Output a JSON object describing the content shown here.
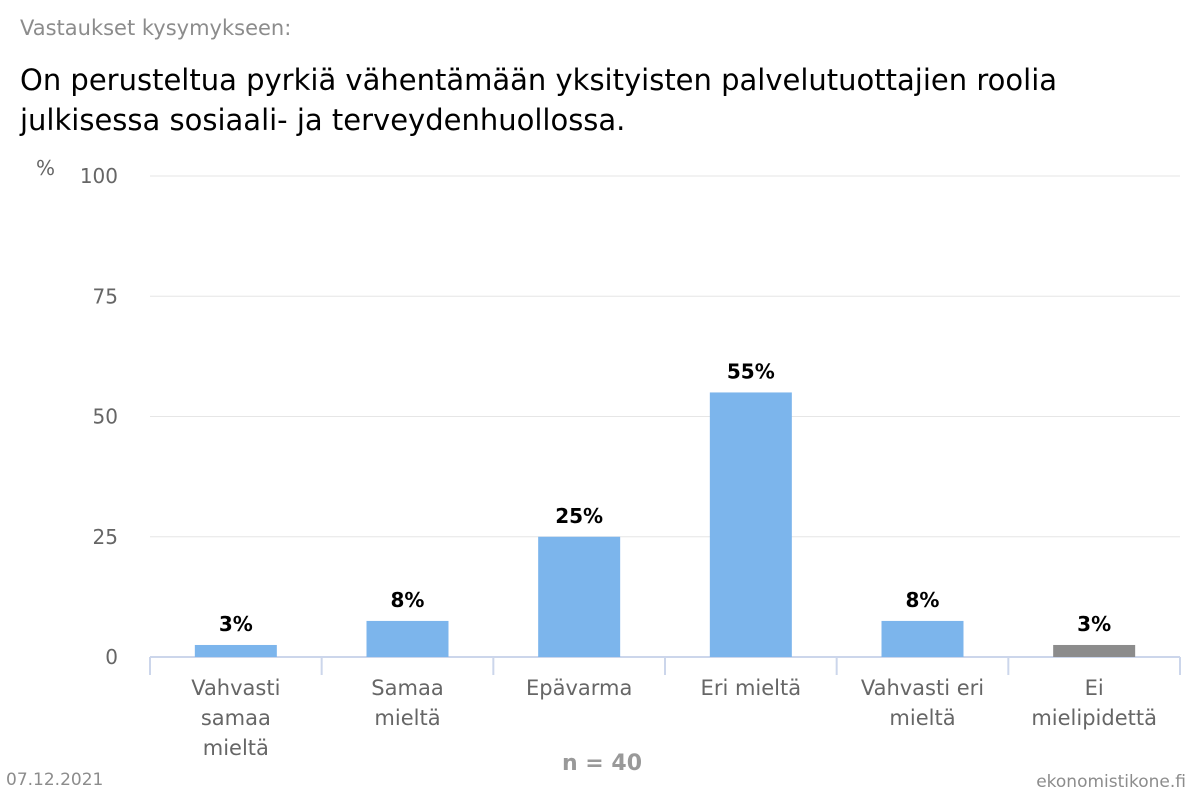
{
  "header": {
    "subtitle": "Vastaukset kysymykseen:",
    "title": "On perusteltua pyrkiä vähentämään yksityisten palvelutuottajien roolia julkisessa sosiaali- ja terveydenhuollossa."
  },
  "footer": {
    "date": "07.12.2021",
    "source": "ekonomistikone.fi",
    "n_label": "n = 40"
  },
  "colors": {
    "bar": "#7cb5ec",
    "bar_no_opinion": "#8c8c8c",
    "grid": "#e6e6e6",
    "axis": "#ccd6eb",
    "tick_text": "#666666",
    "data_label": "#000000"
  },
  "chart_data": {
    "type": "bar",
    "title": "On perusteltua pyrkiä vähentämään yksityisten palvelutuottajien roolia julkisessa sosiaali- ja terveydenhuollossa.",
    "ylabel": "%",
    "ylim": [
      0,
      100
    ],
    "yticks": [
      0,
      25,
      50,
      75,
      100
    ],
    "grid": true,
    "categories": [
      [
        "Vahvasti",
        "samaa",
        "mieltä"
      ],
      [
        "Samaa",
        "mieltä"
      ],
      [
        "Epävarma"
      ],
      [
        "Eri mieltä"
      ],
      [
        "Vahvasti eri",
        "mieltä"
      ],
      [
        "Ei",
        "mielipidettä"
      ]
    ],
    "values": [
      2.5,
      7.5,
      25,
      55,
      7.5,
      2.5
    ],
    "data_labels": [
      "3%",
      "8%",
      "25%",
      "55%",
      "8%",
      "3%"
    ]
  }
}
